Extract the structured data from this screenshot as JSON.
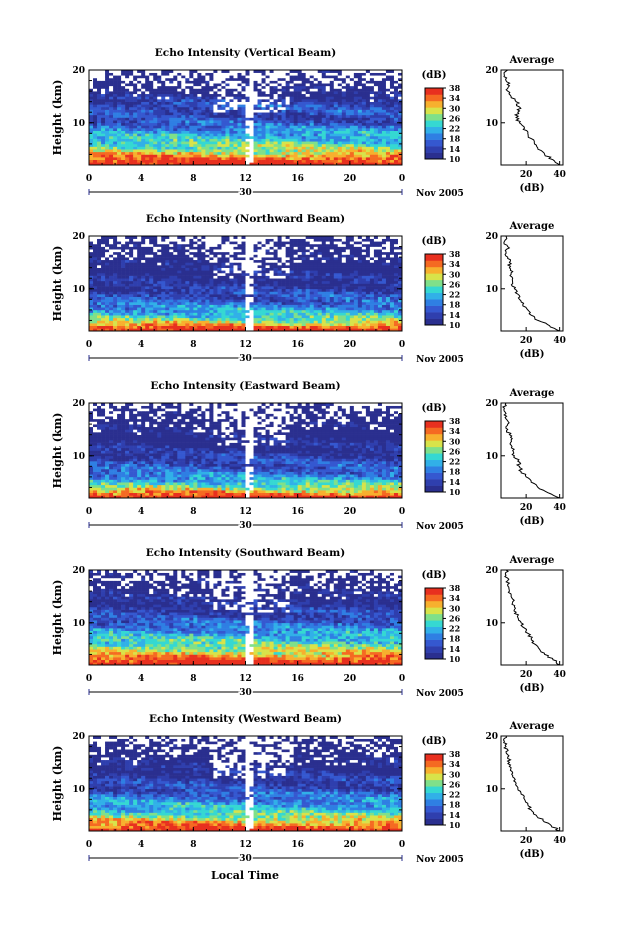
{
  "figure": {
    "bottom_xlabel": "Local Time",
    "date_label": "Nov 2005",
    "date_day": "30"
  },
  "colors": {
    "colorscale": [
      "#2a2f8f",
      "#2f3fae",
      "#3558d0",
      "#2f7fe3",
      "#31b0e8",
      "#35d8d2",
      "#7fe08a",
      "#d8e34a",
      "#f7b02e",
      "#f56a22",
      "#e8301f"
    ],
    "missing": "#ffffff"
  },
  "colorbar": {
    "unit_label": "(dB)",
    "ticks": [
      "10",
      "14",
      "18",
      "22",
      "26",
      "30",
      "34",
      "38"
    ],
    "range": [
      10,
      38
    ]
  },
  "average_panel": {
    "title": "Average",
    "xlabel": "(dB)",
    "xticks": [
      "20",
      "40"
    ],
    "yticks": [
      "10",
      "20"
    ]
  },
  "chart_data": [
    {
      "type": "heatmap",
      "title": "Echo Intensity (Vertical Beam)",
      "ylabel": "Height (km)",
      "xlabel": "",
      "xlim": [
        0,
        24
      ],
      "ylim": [
        2,
        20
      ],
      "x_ticks": [
        "0",
        "4",
        "8",
        "12",
        "16",
        "20",
        "0"
      ],
      "y_ticks": [
        "10",
        "20"
      ],
      "value_range": [
        10,
        38
      ],
      "gap_time": 12.3,
      "profile": {
        "height_km": [
          2,
          3,
          4,
          5,
          6,
          7,
          8,
          9,
          10,
          11,
          12,
          13,
          14,
          15,
          16,
          17,
          18,
          19,
          20
        ],
        "db": [
          40,
          36,
          31,
          27,
          25,
          23,
          21,
          19,
          16,
          14,
          15,
          16,
          14,
          11,
          9,
          10,
          8,
          7,
          9
        ]
      }
    },
    {
      "type": "heatmap",
      "title": "Echo Intensity (Northward Beam)",
      "ylabel": "Height (km)",
      "xlabel": "",
      "xlim": [
        0,
        24
      ],
      "ylim": [
        2,
        20
      ],
      "x_ticks": [
        "0",
        "4",
        "8",
        "12",
        "16",
        "20",
        "0"
      ],
      "y_ticks": [
        "10",
        "20"
      ],
      "value_range": [
        10,
        38
      ],
      "gap_time": 12.3,
      "profile": {
        "height_km": [
          2,
          3,
          4,
          5,
          6,
          7,
          8,
          9,
          10,
          11,
          12,
          13,
          14,
          15,
          16,
          17,
          18,
          19,
          20
        ],
        "db": [
          40,
          34,
          27,
          23,
          21,
          18,
          16,
          15,
          13,
          12,
          12,
          11,
          10,
          10,
          9,
          8,
          9,
          7,
          8
        ]
      }
    },
    {
      "type": "heatmap",
      "title": "Echo Intensity (Eastward Beam)",
      "ylabel": "Height (km)",
      "xlabel": "",
      "xlim": [
        0,
        24
      ],
      "ylim": [
        2,
        20
      ],
      "x_ticks": [
        "0",
        "4",
        "8",
        "12",
        "16",
        "20",
        "0"
      ],
      "y_ticks": [
        "10",
        "20"
      ],
      "value_range": [
        10,
        38
      ],
      "gap_time": 12.3,
      "profile": {
        "height_km": [
          2,
          3,
          4,
          5,
          6,
          7,
          8,
          9,
          10,
          11,
          12,
          13,
          14,
          15,
          16,
          17,
          18,
          19,
          20
        ],
        "db": [
          40,
          33,
          27,
          23,
          20,
          17,
          16,
          15,
          13,
          12,
          11,
          11,
          10,
          9,
          9,
          8,
          8,
          7,
          8
        ]
      }
    },
    {
      "type": "heatmap",
      "title": "Echo Intensity (Southward Beam)",
      "ylabel": "Height (km)",
      "xlabel": "",
      "xlim": [
        0,
        24
      ],
      "ylim": [
        2,
        20
      ],
      "x_ticks": [
        "0",
        "4",
        "8",
        "12",
        "16",
        "20",
        "0"
      ],
      "y_ticks": [
        "10",
        "20"
      ],
      "value_range": [
        10,
        38
      ],
      "gap_time": 12.3,
      "profile": {
        "height_km": [
          2,
          3,
          4,
          5,
          6,
          7,
          8,
          9,
          10,
          11,
          12,
          13,
          14,
          15,
          16,
          17,
          18,
          19,
          20
        ],
        "db": [
          40,
          36,
          31,
          28,
          25,
          23,
          21,
          19,
          17,
          15,
          14,
          13,
          12,
          11,
          10,
          9,
          9,
          8,
          8
        ]
      }
    },
    {
      "type": "heatmap",
      "title": "Echo Intensity (Westward Beam)",
      "ylabel": "Height (km)",
      "xlabel": "",
      "xlim": [
        0,
        24
      ],
      "ylim": [
        2,
        20
      ],
      "x_ticks": [
        "0",
        "4",
        "8",
        "12",
        "16",
        "20",
        "0"
      ],
      "y_ticks": [
        "10",
        "20"
      ],
      "value_range": [
        10,
        38
      ],
      "gap_time": 12.3,
      "profile": {
        "height_km": [
          2,
          3,
          4,
          5,
          6,
          7,
          8,
          9,
          10,
          11,
          12,
          13,
          14,
          15,
          16,
          17,
          18,
          19,
          20
        ],
        "db": [
          40,
          35,
          30,
          26,
          23,
          21,
          19,
          17,
          15,
          14,
          13,
          12,
          11,
          10,
          9,
          8,
          8,
          7,
          8
        ]
      }
    }
  ]
}
